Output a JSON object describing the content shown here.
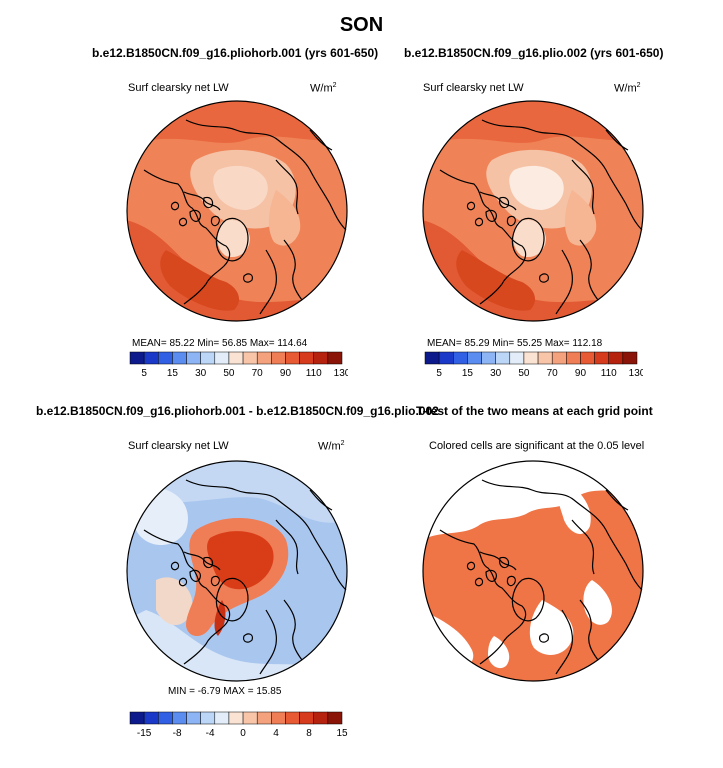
{
  "figure": {
    "title": "SON"
  },
  "panels": [
    {
      "title": "b.e12.B1850CN.f09_g16.pliohorb.001 (yrs 601-650)",
      "variable": "Surf clearsky net LW",
      "units": "W/m",
      "units_exp": "2",
      "stats_text": "MEAN=   85.22   Min=   56.85   Max= 114.64"
    },
    {
      "title": "b.e12.B1850CN.f09_g16.plio.002 (yrs 601-650)",
      "variable": "Surf clearsky net LW",
      "units": "W/m",
      "units_exp": "2",
      "stats_text": "MEAN=   85.29   Min=   55.25   Max= 112.18"
    },
    {
      "title": "b.e12.B1850CN.f09_g16.pliohorb.001 - b.e12.B1850CN.f09_g16.plio.002",
      "variable": "Surf clearsky net LW",
      "units": "W/m",
      "units_exp": "2",
      "stats_text": "MIN =  -6.79  MAX =  15.85"
    },
    {
      "title": "T-test of the two means at each grid point",
      "variable": "Colored cells are significant at the 0.05 level"
    }
  ],
  "chart_data": [
    {
      "type": "heatmap",
      "projection": "north-polar-stereographic",
      "mean": 85.22,
      "min": 56.85,
      "max": 114.64,
      "colorbar_labels": [
        "5",
        "15",
        "30",
        "50",
        "70",
        "90",
        "110",
        "130"
      ],
      "colorbar_colors": [
        "#0c1a8c",
        "#1a39c9",
        "#3160e4",
        "#5b8cef",
        "#8db5f5",
        "#bcd6f7",
        "#e2edf9",
        "#fbe3d4",
        "#f8c5a9",
        "#f4a27d",
        "#ef7d55",
        "#e85a33",
        "#d63b1d",
        "#b5230f",
        "#8a1407"
      ]
    },
    {
      "type": "heatmap",
      "projection": "north-polar-stereographic",
      "mean": 85.29,
      "min": 55.25,
      "max": 112.18,
      "colorbar_labels": [
        "5",
        "15",
        "30",
        "50",
        "70",
        "90",
        "110",
        "130"
      ],
      "colorbar_colors": [
        "#0c1a8c",
        "#1a39c9",
        "#3160e4",
        "#5b8cef",
        "#8db5f5",
        "#bcd6f7",
        "#e2edf9",
        "#fbe3d4",
        "#f8c5a9",
        "#f4a27d",
        "#ef7d55",
        "#e85a33",
        "#d63b1d",
        "#b5230f",
        "#8a1407"
      ]
    },
    {
      "type": "heatmap",
      "projection": "north-polar-stereographic",
      "min": -6.79,
      "max": 15.85,
      "colorbar_labels": [
        "-15",
        "-8",
        "-4",
        "0",
        "4",
        "8",
        "15"
      ],
      "colorbar_colors": [
        "#0c1a8c",
        "#1a39c9",
        "#3160e4",
        "#5b8cef",
        "#8db5f5",
        "#bcd6f7",
        "#e2edf9",
        "#fbe3d4",
        "#f8c5a9",
        "#f4a27d",
        "#ef7d55",
        "#e85a33",
        "#d63b1d",
        "#b5230f",
        "#8a1407"
      ]
    },
    {
      "type": "heatmap",
      "projection": "north-polar-stereographic",
      "significance_color": "#ef7446"
    }
  ]
}
